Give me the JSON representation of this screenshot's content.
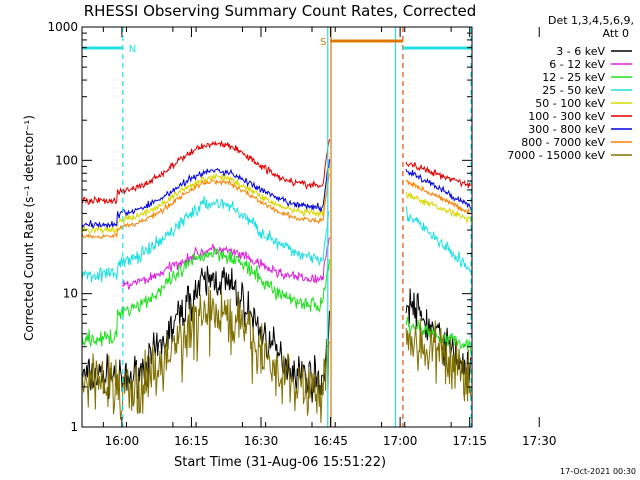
{
  "chart_data": {
    "type": "line",
    "title": "RHESSI Observing Summary Count Rates, Corrected",
    "xlabel": "Start Time (31-Aug-06 15:51:22)",
    "ylabel": "Corrected Count Rate (s⁻¹ detector⁻¹)",
    "yscale": "log",
    "ylim": [
      1,
      1000
    ],
    "xlim_minutes": [
      15.4,
      99.5
    ],
    "x_ticks": [
      {
        "label": "16:00",
        "min": 24
      },
      {
        "label": "16:15",
        "min": 39
      },
      {
        "label": "16:30",
        "min": 54
      },
      {
        "label": "16:45",
        "min": 69
      },
      {
        "label": "17:00",
        "min": 84
      },
      {
        "label": "17:15",
        "min": 99
      },
      {
        "label": "17:30",
        "min": 114
      }
    ],
    "y_ticks": [
      {
        "label": "1",
        "value": 1
      },
      {
        "label": "10",
        "value": 10
      },
      {
        "label": "100",
        "value": 100
      },
      {
        "label": "1000",
        "value": 1000
      }
    ],
    "legend_header": [
      "Det 1,3,4,5,6,9,",
      "Att 0"
    ],
    "legend_placement": "right",
    "timestamp": "17-Oct-2021 00:30",
    "series": [
      {
        "name": "3 - 6 keV",
        "color": "#000000"
      },
      {
        "name": "6 - 12 keV",
        "color": "#e020e0"
      },
      {
        "name": "12 - 25 keV",
        "color": "#20e020"
      },
      {
        "name": "25 - 50 keV",
        "color": "#20e0e0"
      },
      {
        "name": "50 - 100 keV",
        "color": "#d8d800"
      },
      {
        "name": "100 - 300 keV",
        "color": "#e00000"
      },
      {
        "name": "300 - 800 keV",
        "color": "#0000e0"
      },
      {
        "name": "800 - 7000 keV",
        "color": "#ff8000"
      },
      {
        "name": "7000 - 15000 keV",
        "color": "#807000"
      }
    ],
    "flags": [
      {
        "label": "N",
        "color": "#20e0e0",
        "start_min": 15.4,
        "end_min": 24.2
      },
      {
        "label": "S",
        "color": "#e07800",
        "start_min": 68.9,
        "end_min": 84.6
      },
      {
        "label": "",
        "color": "#20e0e0",
        "start_min": 84.6,
        "end_min": 99.5
      }
    ],
    "vlines": [
      {
        "min": 24.2,
        "color": "#20e0e0",
        "style": "dashed"
      },
      {
        "min": 68.4,
        "color": "#20e0e0",
        "style": "solid"
      },
      {
        "min": 69.1,
        "color": "#e07800",
        "style": "solid"
      },
      {
        "min": 83.0,
        "color": "#20e0e0",
        "style": "solid"
      },
      {
        "min": 84.6,
        "color": "#e05000",
        "style": "dashed"
      },
      {
        "min": 99.3,
        "color": "#20e0e0",
        "style": "dashed"
      }
    ]
  }
}
